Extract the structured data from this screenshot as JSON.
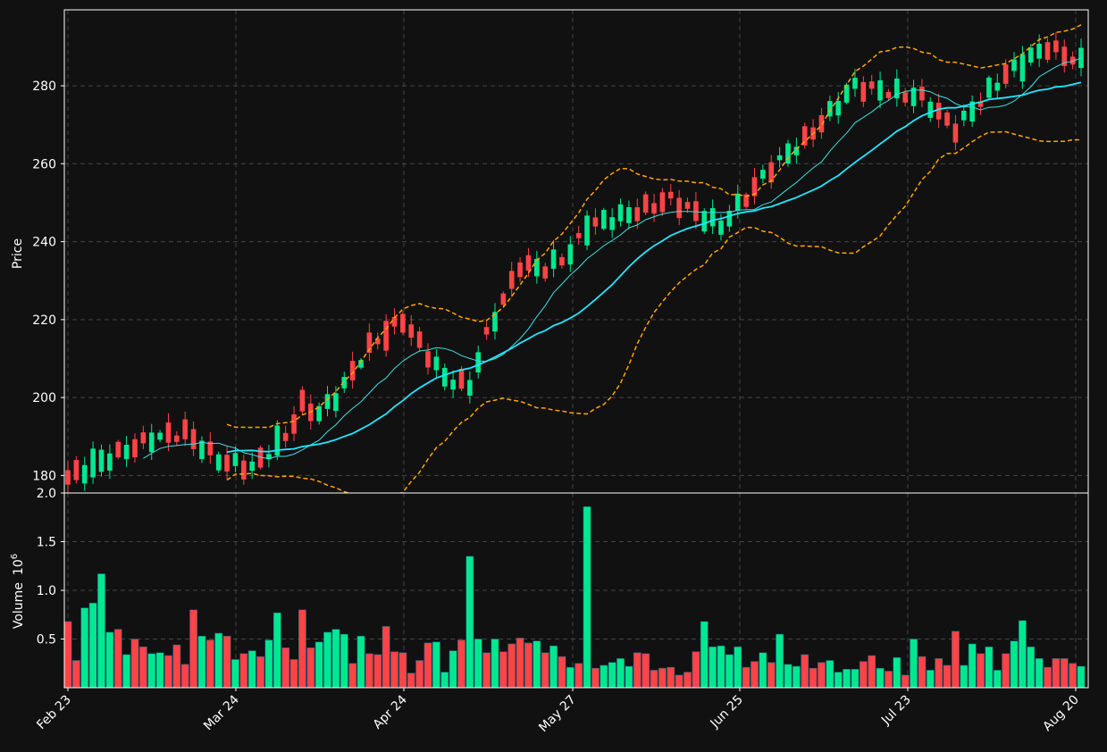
{
  "colors": {
    "background": "#111111",
    "grid": "#444444",
    "up": "#00e88f",
    "down": "#ff4346",
    "ma_fast": "#3fe0e0",
    "ma_slow": "#22e6ff",
    "bands": "#ffa500",
    "axis": "#ffffff"
  },
  "chart_data": [
    {
      "type": "candlestick",
      "ylabel": "Price",
      "ylim": [
        175.5,
        299.5
      ],
      "yticks": [
        180,
        200,
        220,
        240,
        260,
        280
      ],
      "grid": true,
      "dates": [
        "Feb 23",
        "Mar 24",
        "Apr 24",
        "May 27",
        "Jun 25",
        "Jul 23",
        "Aug 20"
      ],
      "bars": 122,
      "overlays": [
        "moving-average-fast",
        "moving-average-slow",
        "bollinger-upper",
        "bollinger-lower"
      ]
    },
    {
      "type": "bar",
      "ylabel": "Volume",
      "ylabel_scale": "10^6",
      "ylim": [
        0.0,
        2.0
      ],
      "yticks": [
        "0.5",
        "1.0",
        "1.5",
        "2.0"
      ],
      "ytick_values": [
        0.5,
        1.0,
        1.5,
        2.0
      ],
      "volumes": [
        0.68,
        0.28,
        0.82,
        0.87,
        1.17,
        0.57,
        0.6,
        0.34,
        0.5,
        0.42,
        0.35,
        0.36,
        0.33,
        0.44,
        0.24,
        0.8,
        0.53,
        0.49,
        0.56,
        0.53,
        0.29,
        0.35,
        0.38,
        0.32,
        0.49,
        0.77,
        0.41,
        0.29,
        0.8,
        0.41,
        0.47,
        0.57,
        0.6,
        0.55,
        0.25,
        0.53,
        0.35,
        0.34,
        0.63,
        0.37,
        0.36,
        0.15,
        0.28,
        0.46,
        0.47,
        0.16,
        0.38,
        0.49,
        1.35,
        0.5,
        0.36,
        0.5,
        0.37,
        0.45,
        0.51,
        0.46,
        0.48,
        0.36,
        0.43,
        0.32,
        0.21,
        0.25,
        1.86,
        0.2,
        0.23,
        0.26,
        0.3,
        0.22,
        0.36,
        0.35,
        0.18,
        0.2,
        0.21,
        0.13,
        0.16,
        0.37,
        0.68,
        0.42,
        0.43,
        0.34,
        0.42,
        0.21,
        0.27,
        0.36,
        0.26,
        0.55,
        0.24,
        0.22,
        0.34,
        0.2,
        0.26,
        0.28,
        0.16,
        0.19,
        0.19,
        0.27,
        0.33,
        0.2,
        0.17,
        0.31,
        0.13,
        0.5,
        0.32,
        0.18,
        0.3,
        0.23,
        0.58,
        0.23,
        0.45,
        0.35,
        0.42,
        0.18,
        0.35,
        0.48,
        0.69,
        0.42,
        0.3,
        0.21,
        0.3,
        0.3,
        0.25,
        0.22
      ],
      "direction": [
        -1,
        -1,
        1,
        1,
        1,
        1,
        -1,
        1,
        -1,
        -1,
        1,
        1,
        -1,
        -1,
        -1,
        -1,
        1,
        -1,
        1,
        -1,
        1,
        -1,
        1,
        -1,
        1,
        1,
        -1,
        -1,
        -1,
        -1,
        1,
        1,
        1,
        1,
        -1,
        1,
        -1,
        -1,
        -1,
        -1,
        -1,
        -1,
        -1,
        -1,
        1,
        1,
        1,
        -1,
        1,
        1,
        -1,
        1,
        -1,
        -1,
        -1,
        -1,
        1,
        -1,
        1,
        -1,
        1,
        -1,
        1,
        -1,
        1,
        1,
        1,
        1,
        -1,
        -1,
        -1,
        -1,
        -1,
        -1,
        -1,
        -1,
        1,
        1,
        1,
        1,
        1,
        -1,
        -1,
        1,
        -1,
        1,
        1,
        1,
        -1,
        -1,
        -1,
        1,
        1,
        1,
        1,
        -1,
        -1,
        1,
        -1,
        1,
        -1,
        1,
        -1,
        1,
        -1,
        -1,
        -1,
        1,
        1,
        -1,
        1,
        1,
        -1,
        1,
        1,
        1,
        1,
        -1,
        -1,
        -1,
        -1,
        1
      ]
    }
  ]
}
